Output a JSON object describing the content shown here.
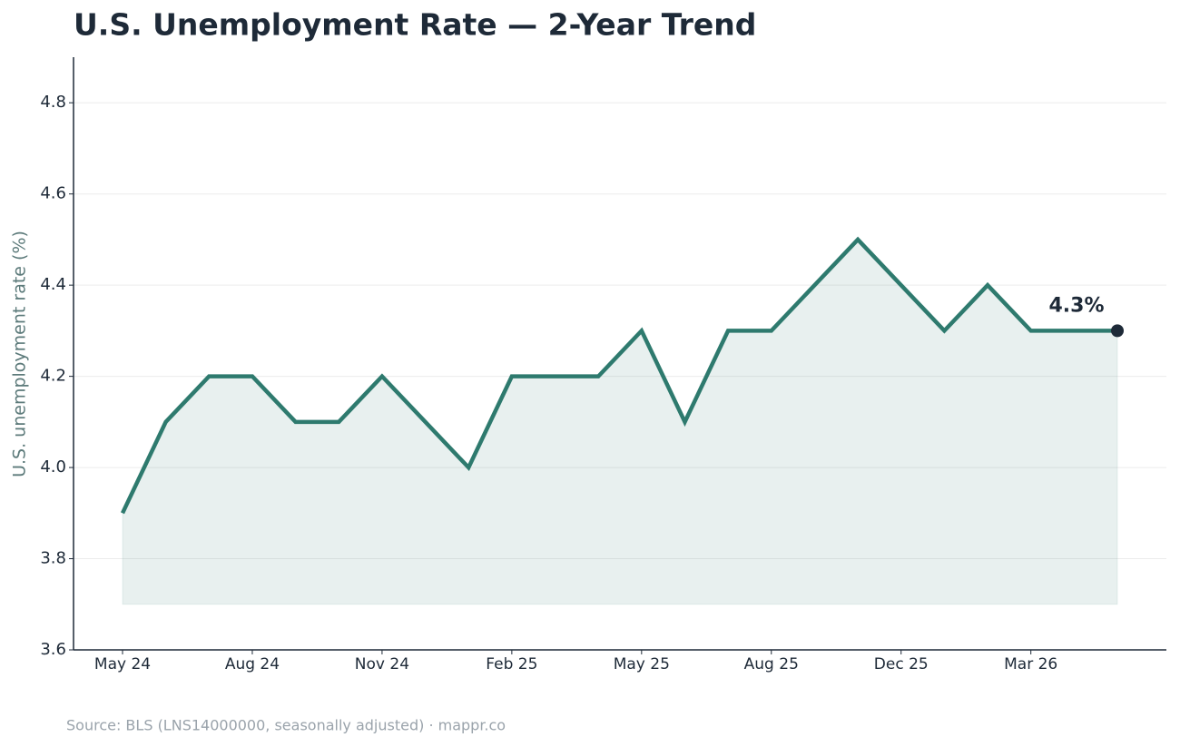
{
  "chart_data": {
    "type": "line",
    "title": "U.S. Unemployment Rate — 2-Year Trend",
    "ylabel": "U.S. unemployment rate (%)",
    "source": "Source: BLS (LNS14000000, seasonally adjusted) · mappr.co",
    "categories": [
      "May 24",
      null,
      null,
      "Aug 24",
      null,
      null,
      "Nov 24",
      null,
      null,
      "Feb 25",
      null,
      null,
      "May 25",
      null,
      null,
      "Aug 25",
      null,
      null,
      "Dec 25",
      null,
      null,
      "Mar 26",
      null,
      null
    ],
    "series": [
      {
        "name": "U.S. unemployment rate",
        "color": "#2e7a6e",
        "values": [
          3.9,
          4.1,
          4.2,
          4.2,
          4.1,
          4.1,
          4.2,
          4.1,
          4.0,
          4.2,
          4.2,
          4.2,
          4.3,
          4.1,
          4.3,
          4.3,
          4.4,
          4.5,
          4.4,
          4.3,
          4.4,
          4.3,
          4.3,
          4.3
        ]
      }
    ],
    "annotation": "4.3%",
    "fill_baseline": 3.7,
    "ylim": [
      3.6,
      4.9
    ],
    "yticks": [
      3.6,
      3.8,
      {
        "value": 4,
        "label": "4.0"
      },
      4.2,
      4.4,
      4.6,
      4.8
    ],
    "grid": true
  }
}
